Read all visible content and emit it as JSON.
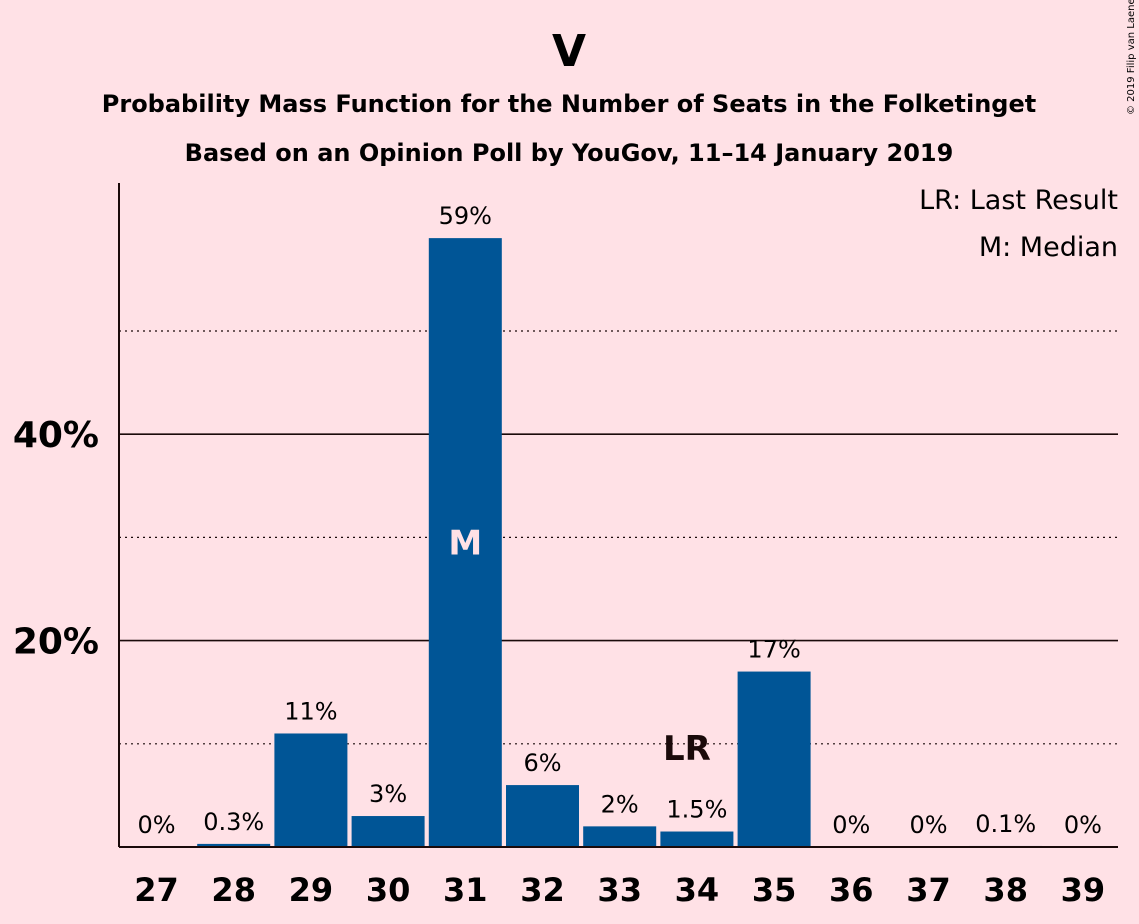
{
  "chart_data": {
    "type": "bar",
    "title": "V",
    "subtitle_line1": "Probability Mass Function for the Number of Seats in the Folketinget",
    "subtitle_line2": "Based on an Opinion Poll by YouGov, 11–14 January 2019",
    "categories": [
      "27",
      "28",
      "29",
      "30",
      "31",
      "32",
      "33",
      "34",
      "35",
      "36",
      "37",
      "38",
      "39"
    ],
    "values": [
      0,
      0.3,
      11,
      3,
      59,
      6,
      2,
      1.5,
      17,
      0,
      0,
      0.1,
      0
    ],
    "value_labels": [
      "0%",
      "0.3%",
      "11%",
      "3%",
      "59%",
      "6%",
      "2%",
      "1.5%",
      "17%",
      "0%",
      "0%",
      "0.1%",
      "0%"
    ],
    "ylim": [
      0,
      64
    ],
    "yticks_major": [
      20,
      40
    ],
    "ytick_labels": [
      "20%",
      "40%"
    ],
    "yticks_minor": [
      10,
      30,
      50
    ],
    "median_category": "31",
    "median_marker": "M",
    "last_result_category": "34",
    "last_result_marker": "LR",
    "legend": [
      "LR: Last Result",
      "M: Median"
    ],
    "legend_placement": "top-right",
    "bar_color": "#005596",
    "background_color": "#FFE1E6"
  },
  "copyright": "© 2019 Filip van Laenen"
}
